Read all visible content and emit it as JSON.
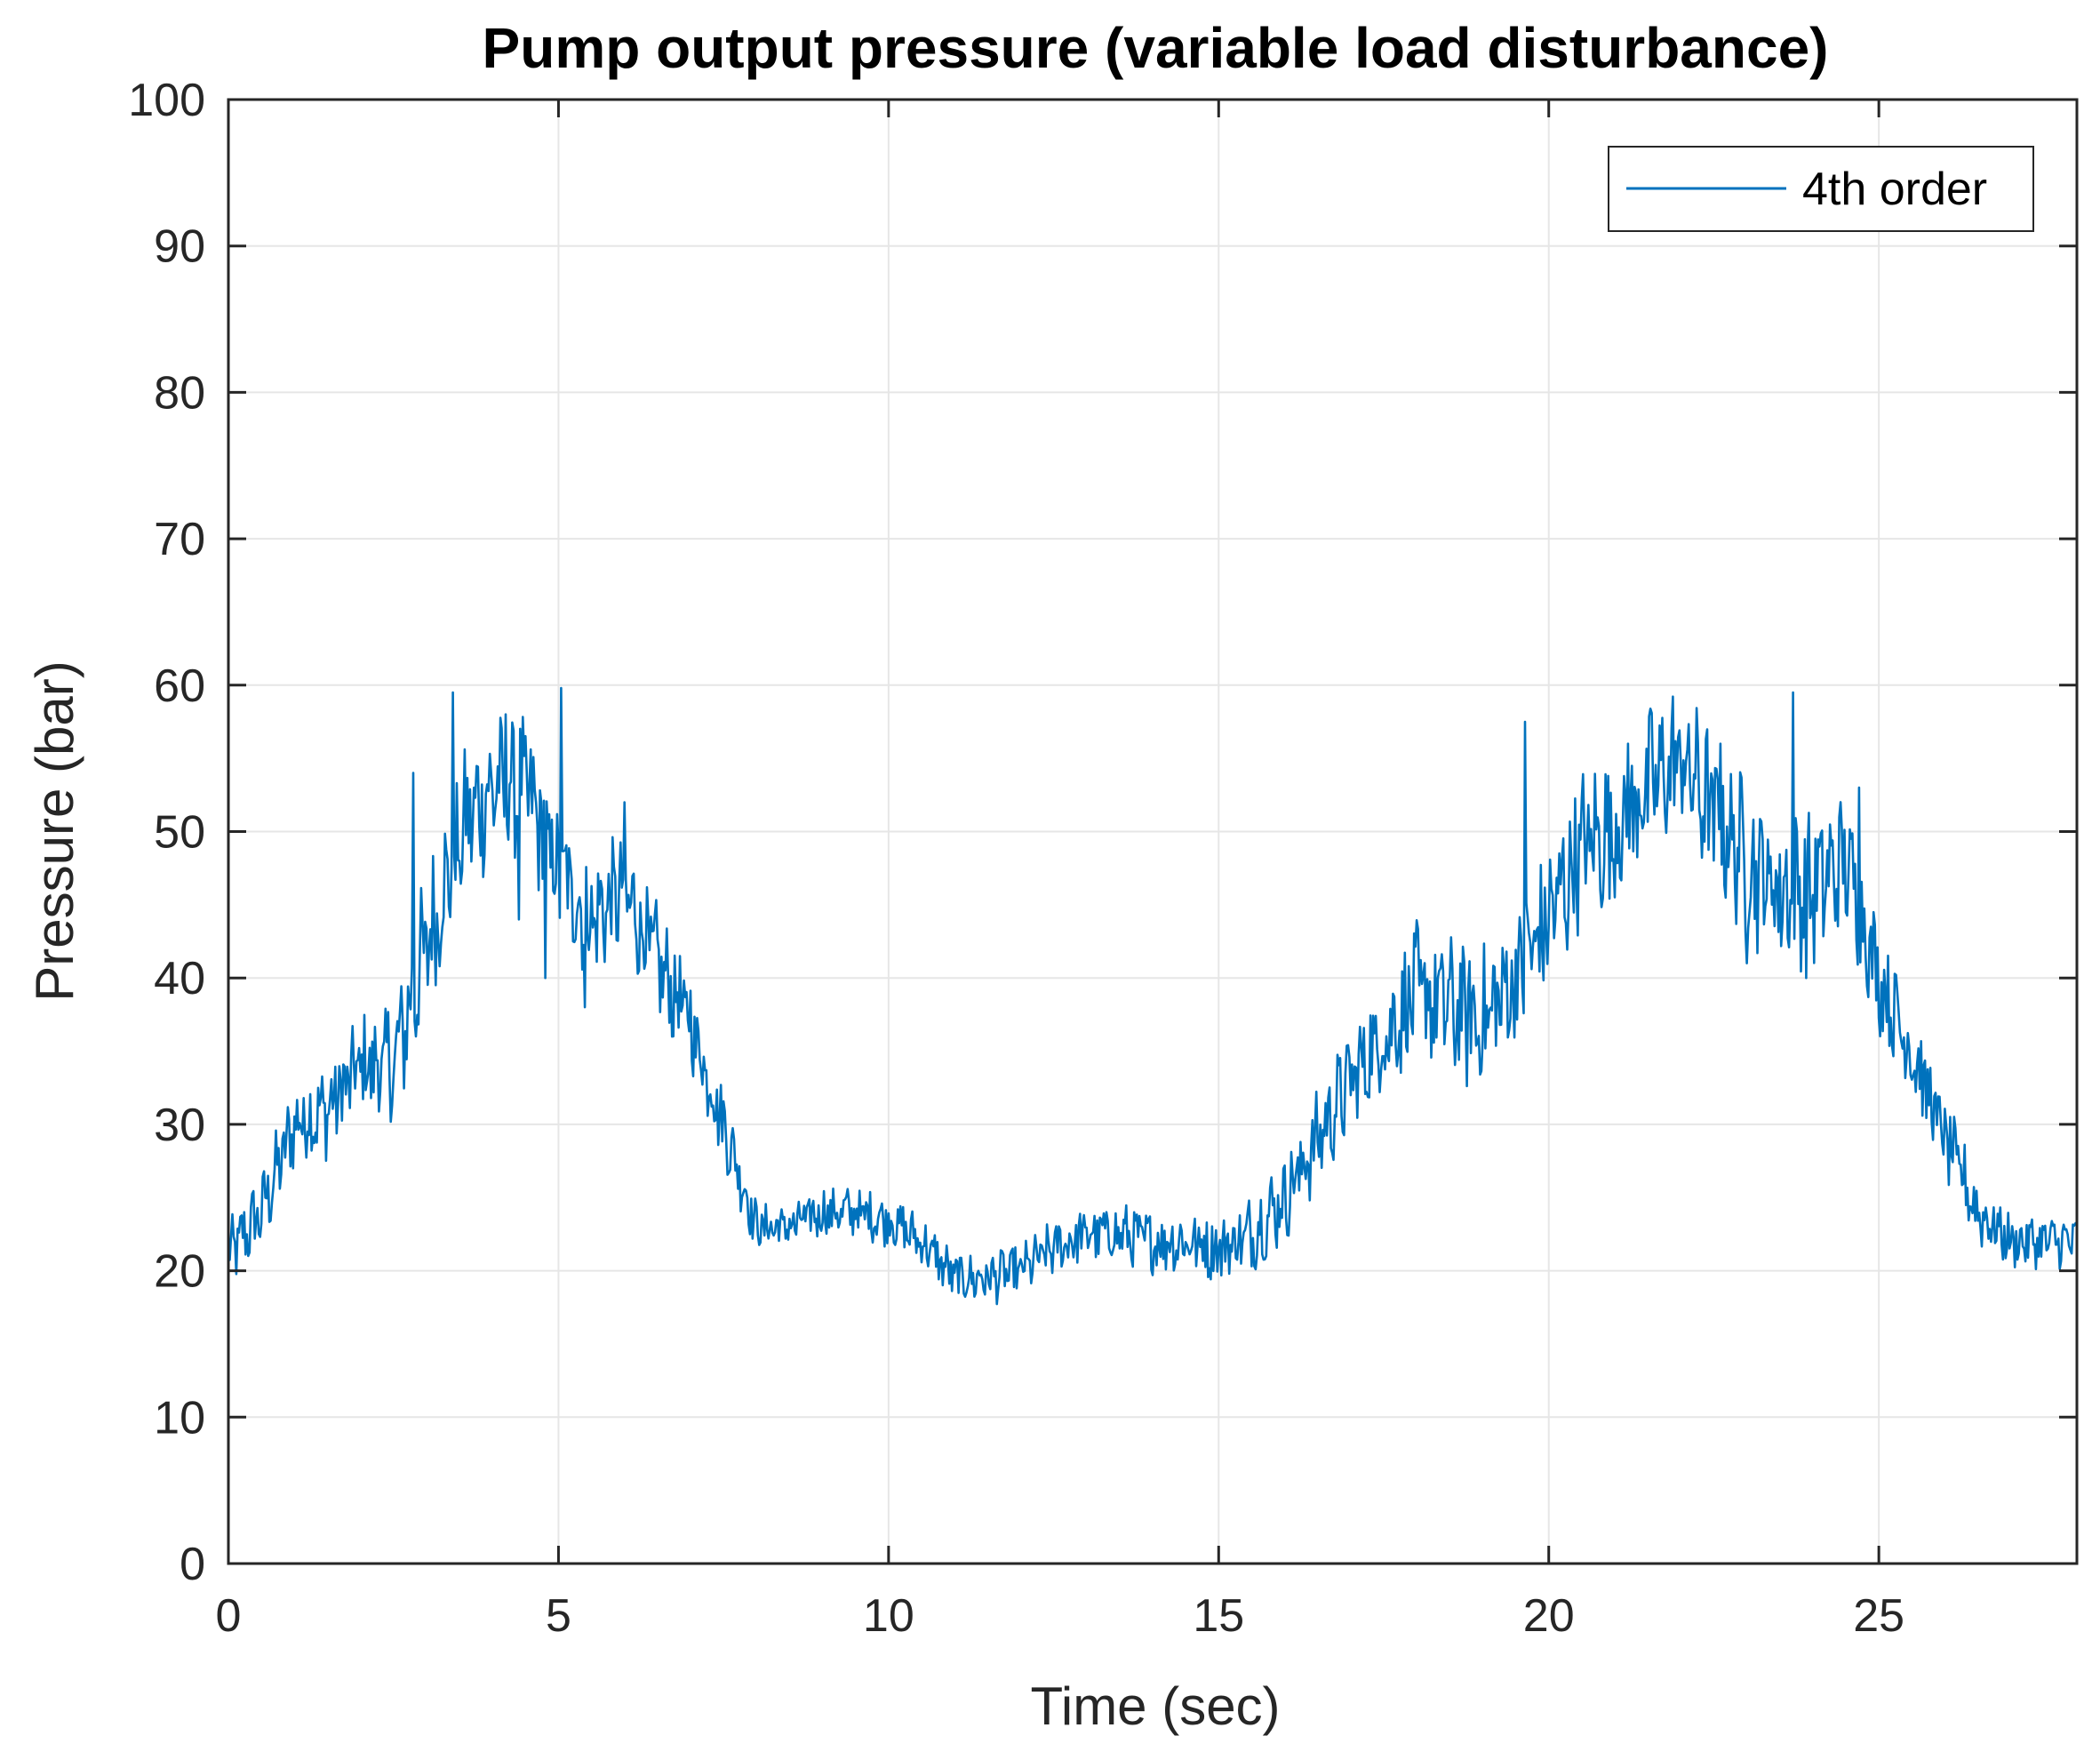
{
  "chart_data": {
    "type": "line",
    "title": "Pump output pressure (variable load disturbance)",
    "xlabel": "Time (sec)",
    "ylabel": "Pressure (bar)",
    "xlim": [
      0,
      28
    ],
    "ylim": [
      0,
      100
    ],
    "xticks": [
      0,
      5,
      10,
      15,
      20,
      25
    ],
    "yticks": [
      0,
      10,
      20,
      30,
      40,
      50,
      60,
      70,
      80,
      90,
      100
    ],
    "grid": true,
    "legend_position": "top-right",
    "series": [
      {
        "name": "4th order",
        "color": "#0072bd",
        "trend": [
          [
            0,
            21
          ],
          [
            0.5,
            24
          ],
          [
            1,
            30
          ],
          [
            1.5,
            31
          ],
          [
            2,
            34
          ],
          [
            2.5,
            34
          ],
          [
            3,
            42
          ],
          [
            3.5,
            50
          ],
          [
            4,
            53
          ],
          [
            4.5,
            53
          ],
          [
            5,
            47
          ],
          [
            5.5,
            44
          ],
          [
            6,
            46
          ],
          [
            6.5,
            41
          ],
          [
            7,
            37
          ],
          [
            7.5,
            30
          ],
          [
            8,
            23
          ],
          [
            8.5,
            23
          ],
          [
            9,
            24
          ],
          [
            9.5,
            24
          ],
          [
            10,
            23.5
          ],
          [
            10.5,
            22
          ],
          [
            11,
            19.5
          ],
          [
            11.5,
            19.5
          ],
          [
            12,
            20
          ],
          [
            12.5,
            21.5
          ],
          [
            13,
            22.5
          ],
          [
            13.5,
            22.5
          ],
          [
            14,
            22
          ],
          [
            14.5,
            22
          ],
          [
            15,
            21.5
          ],
          [
            15.5,
            22.5
          ],
          [
            16,
            25
          ],
          [
            16.5,
            29
          ],
          [
            17,
            33
          ],
          [
            17.5,
            36
          ],
          [
            18,
            39
          ],
          [
            18.5,
            38
          ],
          [
            19,
            37
          ],
          [
            19.5,
            40
          ],
          [
            20,
            44
          ],
          [
            20.5,
            49
          ],
          [
            21,
            50
          ],
          [
            21.5,
            53
          ],
          [
            22,
            55
          ],
          [
            22.5,
            51
          ],
          [
            23,
            48
          ],
          [
            23.5,
            46
          ],
          [
            24,
            46
          ],
          [
            24.5,
            48
          ],
          [
            25,
            40
          ],
          [
            25.5,
            35
          ],
          [
            26,
            29
          ],
          [
            26.5,
            24
          ],
          [
            27,
            22
          ],
          [
            27.5,
            22
          ],
          [
            28,
            22
          ]
        ],
        "noise_amplitude": [
          [
            0,
            2
          ],
          [
            2,
            3
          ],
          [
            3,
            4.5
          ],
          [
            5,
            4
          ],
          [
            7,
            3
          ],
          [
            8,
            1.5
          ],
          [
            10,
            1.5
          ],
          [
            12,
            1.5
          ],
          [
            15,
            2
          ],
          [
            17,
            3
          ],
          [
            18,
            4
          ],
          [
            20,
            4.5
          ],
          [
            22,
            4.5
          ],
          [
            24,
            4.5
          ],
          [
            25,
            3
          ],
          [
            26,
            2.5
          ],
          [
            27,
            1.5
          ],
          [
            28,
            1.5
          ]
        ],
        "spikes": [
          [
            2.8,
            54
          ],
          [
            3.4,
            59.5
          ],
          [
            3.5,
            48
          ],
          [
            4.2,
            58
          ],
          [
            4.4,
            44
          ],
          [
            4.8,
            40
          ],
          [
            5.05,
            59.8
          ],
          [
            5.4,
            38
          ],
          [
            6.0,
            52
          ],
          [
            19.65,
            57.5
          ],
          [
            21.2,
            56
          ],
          [
            22.6,
            56
          ],
          [
            23.0,
            41
          ],
          [
            23.7,
            59.5
          ],
          [
            23.9,
            40
          ],
          [
            24.7,
            53
          ]
        ]
      }
    ]
  }
}
